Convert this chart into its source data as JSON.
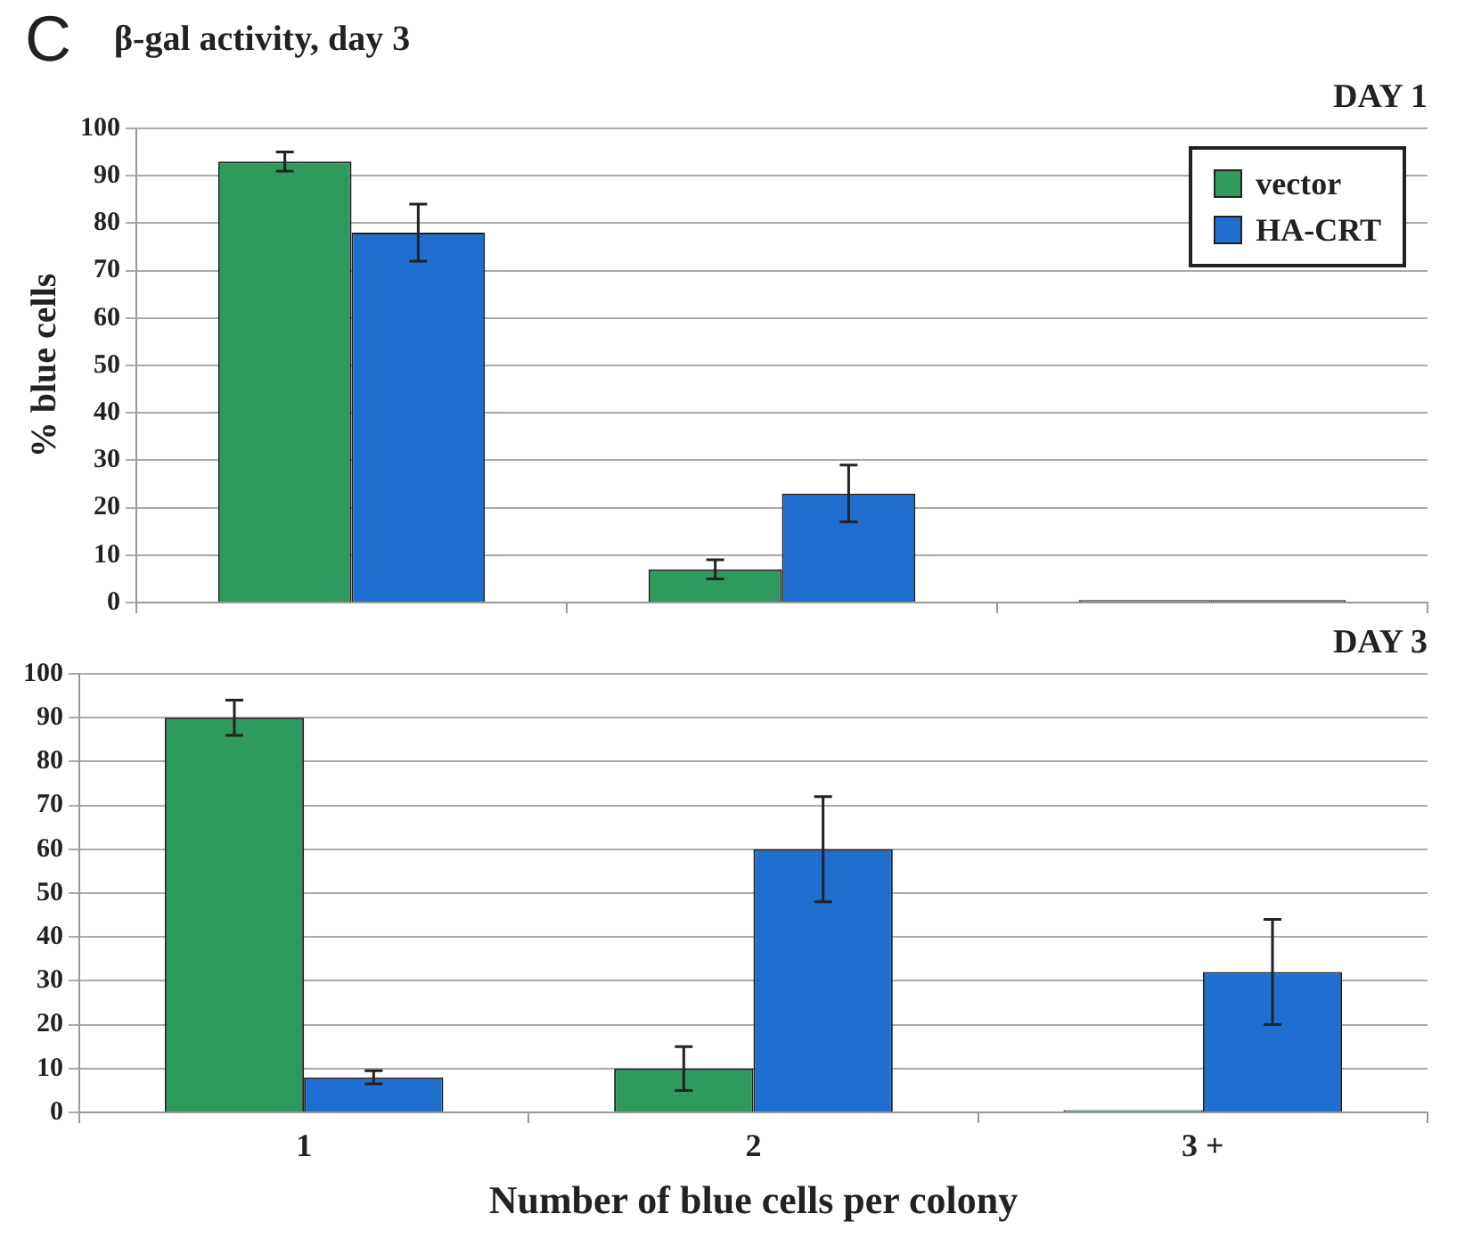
{
  "chart_data": [
    {
      "type": "bar",
      "title": "DAY 1",
      "annotations": [
        "C",
        "β-gal activity, day 3"
      ],
      "ylabel": "% blue cells",
      "categories": [
        null,
        null,
        null
      ],
      "series": [
        {
          "name": "vector",
          "color": "#2e9a5e",
          "values": [
            93,
            7,
            0.5
          ],
          "errors": [
            2,
            2,
            null
          ]
        },
        {
          "name": "HA-CRT",
          "color": "#1f6fd1",
          "values": [
            78,
            23,
            0.5
          ],
          "errors": [
            6,
            6,
            null
          ]
        }
      ],
      "ylim": [
        0,
        100
      ],
      "yticks": [
        0,
        10,
        20,
        30,
        40,
        50,
        60,
        70,
        80,
        90,
        100
      ],
      "grid": "y",
      "legend": "top right",
      "tick_labels": "y"
    },
    {
      "type": "bar",
      "title": "DAY 3",
      "xlabel": "Number of blue cells per colony",
      "categories": [
        "1",
        "2",
        "3 +"
      ],
      "series": [
        {
          "color": "#2e9a5e",
          "values": [
            90,
            10,
            0.5
          ],
          "errors": [
            4,
            5,
            null
          ]
        },
        {
          "color": "#1f6fd1",
          "values": [
            8,
            60,
            32
          ],
          "errors": [
            1.5,
            12,
            12
          ]
        }
      ],
      "ylim": [
        0,
        100
      ],
      "yticks": [
        0,
        10,
        20,
        30,
        40,
        50,
        60,
        70,
        80,
        90,
        100
      ],
      "grid": "y",
      "legend": false
    }
  ]
}
